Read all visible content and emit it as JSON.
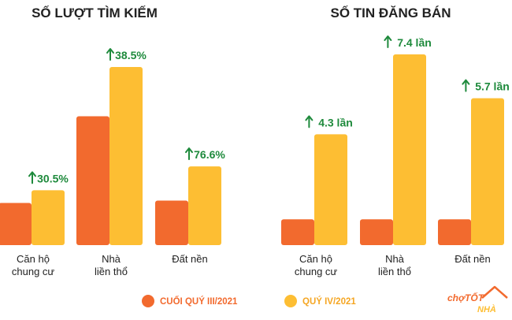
{
  "colors": {
    "series_q3": "#F26A2E",
    "series_q4": "#FDBE33",
    "growth": "#1E8A3C",
    "logo_orange": "#F26A2E",
    "logo_yellow": "#FDBE33"
  },
  "logo": {
    "text_top": "chợTỐT",
    "text_bottom": "NHÀ"
  },
  "legend": [
    {
      "label": "CUỐI QUÝ III/2021",
      "color": "#F26A2E",
      "text_color": "#F26A2E"
    },
    {
      "label": "QUÝ IV/2021",
      "color": "#FDBE33",
      "text_color": "#F5A623"
    }
  ],
  "chart_data": [
    {
      "type": "bar",
      "title": "SỐ LƯỢT TÌM KIẾM",
      "categories": [
        [
          "Căn hộ",
          "chung cư"
        ],
        [
          "Nhà",
          "liền thổ"
        ],
        [
          "Đất nền"
        ]
      ],
      "series": [
        {
          "name": "CUỐI QUÝ III/2021",
          "values": [
            53,
            162,
            56
          ]
        },
        {
          "name": "QUÝ IV/2021",
          "values": [
            69,
            224,
            99
          ]
        }
      ],
      "growth_labels": [
        "30.5%",
        "38.5%",
        "76.6%"
      ],
      "ylim": [
        0,
        224
      ]
    },
    {
      "type": "bar",
      "title": "SỐ TIN ĐĂNG BÁN",
      "categories": [
        [
          "Căn hộ",
          "chung cư"
        ],
        [
          "Nhà",
          "liền thổ"
        ],
        [
          "Đất nền"
        ]
      ],
      "series": [
        {
          "name": "CUỐI QUÝ III/2021",
          "values": [
            1,
            1,
            1
          ]
        },
        {
          "name": "QUÝ IV/2021",
          "values": [
            4.3,
            7.4,
            5.7
          ]
        }
      ],
      "growth_labels": [
        "4.3 lần",
        "7.4 lần",
        "5.7 lần"
      ],
      "ylim": [
        0,
        7.4
      ]
    }
  ]
}
